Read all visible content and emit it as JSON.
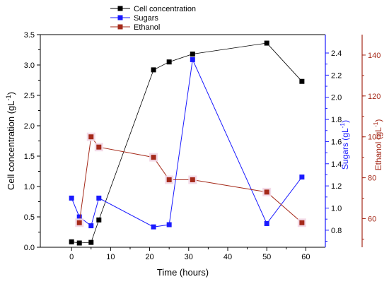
{
  "chart_data": {
    "type": "line",
    "xlabel": "Time (hours)",
    "xlim": [
      -8,
      65
    ],
    "xticks": [
      "0",
      "10",
      "20",
      "30",
      "40",
      "50",
      "60"
    ],
    "legend_placement": "top-center",
    "legend": [
      {
        "key": "cell",
        "label": "Cell concentration",
        "color": "#000000"
      },
      {
        "key": "sugars",
        "label": "Sugars",
        "color": "#1a1aff"
      },
      {
        "key": "ethanol",
        "label": "Ethanol",
        "color": "#a52a1a"
      }
    ],
    "axes": {
      "cell": {
        "label_main": "Cell concentration (gL",
        "label_sup": "-1",
        "label_close": ")",
        "color": "#000000",
        "ylim": [
          0,
          3.5
        ],
        "ticks": [
          "0.0",
          "0.5",
          "1.0",
          "1.5",
          "2.0",
          "2.5",
          "3.0",
          "3.5"
        ]
      },
      "sugars": {
        "label_main": "Sugars (gL",
        "label_sup": "-1",
        "label_close": ")",
        "color": "#1a1aff",
        "ylim": [
          0.646,
          2.566
        ],
        "ticks": [
          "0.8",
          "1.0",
          "1.2",
          "1.4",
          "1.6",
          "1.8",
          "2.0",
          "2.2",
          "2.4"
        ]
      },
      "ethanol": {
        "label_main": "Ethanol (gL",
        "label_sup": "-1",
        "label_close": ")",
        "color": "#a52a1a",
        "ylim": [
          46,
          150
        ],
        "ticks": [
          "60",
          "80",
          "100",
          "120",
          "140"
        ]
      }
    },
    "series": [
      {
        "name": "Cell concentration",
        "axis": "cell",
        "color": "#000000",
        "x": [
          0,
          2,
          5,
          7,
          21,
          25,
          31,
          50,
          59
        ],
        "y": [
          0.09,
          0.07,
          0.08,
          0.45,
          2.92,
          3.05,
          3.18,
          3.36,
          2.73
        ]
      },
      {
        "name": "Sugars",
        "axis": "sugars",
        "color": "#1a1aff",
        "x": [
          0,
          2,
          5,
          7,
          21,
          25,
          31,
          50,
          59
        ],
        "y": [
          1.09,
          0.92,
          0.84,
          1.09,
          0.83,
          0.85,
          2.34,
          0.86,
          1.28
        ]
      },
      {
        "name": "Ethanol",
        "axis": "ethanol",
        "color": "#a52a1a",
        "x": [
          2,
          5,
          7,
          21,
          25,
          31,
          50,
          59
        ],
        "y": [
          58,
          100,
          95,
          90,
          79,
          79,
          73,
          58
        ]
      }
    ]
  }
}
